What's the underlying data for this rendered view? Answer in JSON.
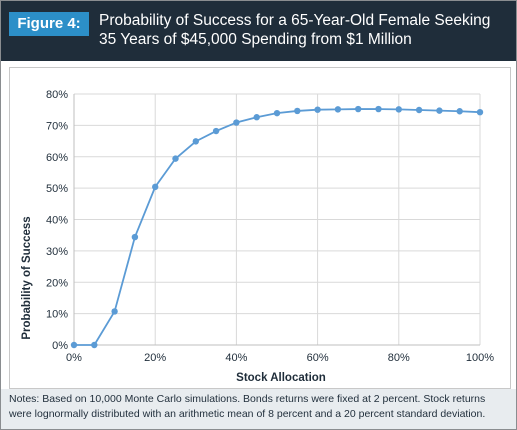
{
  "figure": {
    "label": "Figure 4:",
    "title": "Probability of Success for a 65-Year-Old Female Seeking 35 Years of $45,000 Spending from $1 Million",
    "notes": "Notes: Based on 10,000 Monte Carlo simulations. Bonds returns were fixed at 2 percent. Stock returns were lognormally distributed with an arithmetic mean of 8 percent and a 20 percent standard deviation."
  },
  "colors": {
    "header_bg": "#1f2d3a",
    "label_bg": "#2c8fc8",
    "series": "#5b9bd5",
    "grid": "#d9d9d9",
    "notes_bg": "#e8ecef"
  },
  "chart_data": {
    "type": "line",
    "xlabel": "Stock Allocation",
    "ylabel": "Probability of Success",
    "xlim": [
      0,
      100
    ],
    "ylim": [
      0,
      80
    ],
    "x_ticks": [
      0,
      20,
      40,
      60,
      80,
      100
    ],
    "x_tick_labels": [
      "0%",
      "20%",
      "40%",
      "60%",
      "80%",
      "100%"
    ],
    "y_ticks": [
      0,
      10,
      20,
      30,
      40,
      50,
      60,
      70,
      80
    ],
    "y_tick_labels": [
      "0%",
      "10%",
      "20%",
      "30%",
      "40%",
      "50%",
      "60%",
      "70%",
      "80%"
    ],
    "grid": true,
    "series": [
      {
        "x": [
          0,
          5,
          10,
          15,
          20,
          25,
          30,
          35,
          40,
          45,
          50,
          55,
          60,
          65,
          70,
          75,
          80,
          85,
          90,
          95,
          100
        ],
        "values": [
          0,
          0,
          10.7,
          34.4,
          50.4,
          59.4,
          64.9,
          68.2,
          70.9,
          72.6,
          73.9,
          74.6,
          75.0,
          75.1,
          75.2,
          75.2,
          75.1,
          74.9,
          74.7,
          74.5,
          74.2
        ]
      }
    ]
  }
}
